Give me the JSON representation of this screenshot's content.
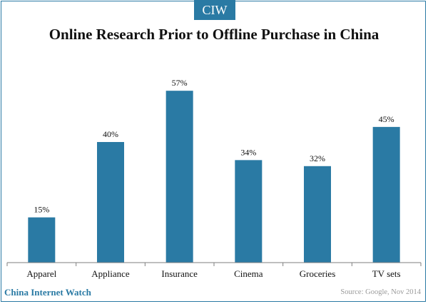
{
  "brand": {
    "badge": "CIW",
    "footer_name": "China Internet Watch",
    "accent_color": "#2a7aa4"
  },
  "source_note": "Source: Google, Nov 2014",
  "chart_data": {
    "type": "bar",
    "title": "Online Research Prior to Offline Purchase in China",
    "xlabel": "",
    "ylabel": "",
    "categories": [
      "Apparel",
      "Appliance",
      "Insurance",
      "Cinema",
      "Groceries",
      "TV sets"
    ],
    "values": [
      15,
      40,
      57,
      34,
      32,
      45
    ],
    "value_labels": [
      "15%",
      "40%",
      "57%",
      "34%",
      "32%",
      "45%"
    ],
    "ylim": [
      0,
      60
    ],
    "bar_color": "#2a7aa4",
    "grid": false,
    "legend": "none"
  }
}
